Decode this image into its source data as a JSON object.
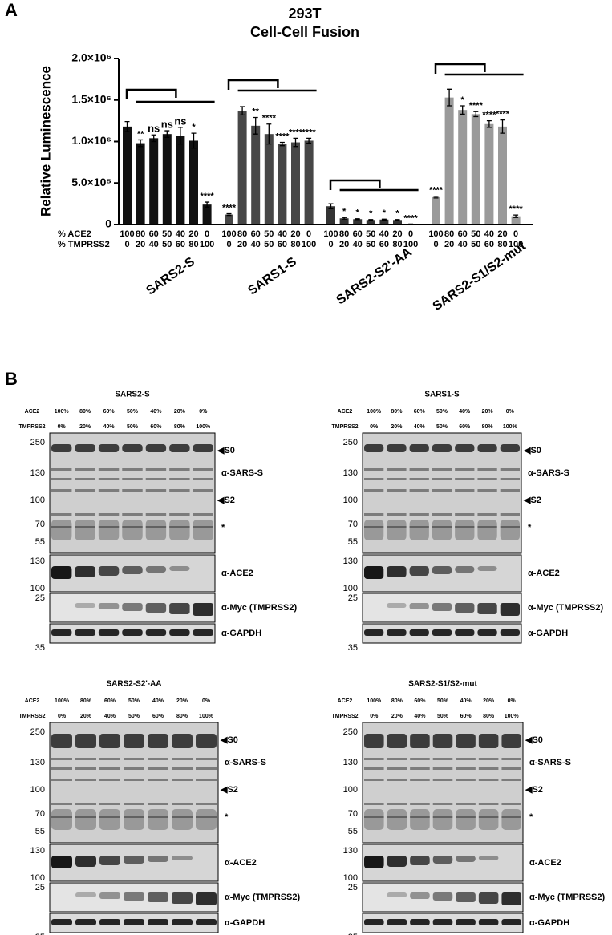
{
  "panel_labels": [
    "A",
    "B"
  ],
  "chart_data": {
    "type": "bar",
    "title": "293T",
    "subtitle": "Cell-Cell Fusion",
    "y_label": "Relative Luminescence",
    "ylim": [
      0,
      2000000
    ],
    "yticks": [
      0,
      {
        "value": 500000,
        "label": "5.0×10⁵"
      },
      {
        "value": 1000000,
        "label": "1.0×10⁶"
      },
      {
        "value": 1500000,
        "label": "1.5×10⁶"
      },
      {
        "value": 2000000,
        "label": "2.0×10⁶"
      }
    ],
    "row_labels": [
      "% ACE2",
      "% TMPRSS2"
    ],
    "ace2": [
      100,
      80,
      60,
      50,
      40,
      20,
      0
    ],
    "tmprss2": [
      0,
      20,
      40,
      50,
      60,
      80,
      100
    ],
    "series": [
      {
        "name": "SARS2-S",
        "color": "#111111",
        "values": [
          1180000,
          980000,
          1040000,
          1090000,
          1070000,
          1010000,
          240000
        ],
        "errors": [
          60000,
          40000,
          40000,
          40000,
          100000,
          90000,
          30000
        ],
        "significance": [
          null,
          "**",
          "ns",
          "ns",
          "ns",
          "*",
          "****"
        ]
      },
      {
        "name": "SARS1-S",
        "color": "#474747",
        "values": [
          120000,
          1370000,
          1190000,
          1090000,
          970000,
          990000,
          1010000
        ],
        "errors": [
          10000,
          50000,
          100000,
          120000,
          20000,
          50000,
          30000
        ],
        "significance": [
          "****",
          null,
          "**",
          "****",
          "****",
          "****",
          "****"
        ]
      },
      {
        "name": "SARS2-S2'-AA",
        "color": "#333333",
        "values": [
          220000,
          75000,
          65000,
          55000,
          60000,
          55000,
          5000
        ],
        "errors": [
          30000,
          10000,
          5000,
          5000,
          5000,
          5000,
          1000
        ],
        "significance": [
          null,
          "*",
          "*",
          "*",
          "*",
          "*",
          "****"
        ]
      },
      {
        "name": "SARS2-S1/S2-mut",
        "color": "#9a9a9a",
        "values": [
          330000,
          1530000,
          1380000,
          1330000,
          1210000,
          1180000,
          100000
        ],
        "errors": [
          10000,
          100000,
          50000,
          30000,
          40000,
          80000,
          15000
        ],
        "significance": [
          "****",
          null,
          "*",
          "****",
          "****",
          "****",
          "****"
        ]
      }
    ]
  },
  "blots": {
    "titles": [
      "SARS2-S",
      "SARS1-S",
      "SARS2-S2'-AA",
      "SARS2-S1/S2-mut"
    ],
    "row_labels": [
      "ACE2",
      "TMPRSS2"
    ],
    "ace2": [
      "100%",
      "80%",
      "60%",
      "50%",
      "40%",
      "20%",
      "0%"
    ],
    "tmprss2": [
      "0%",
      "20%",
      "40%",
      "50%",
      "60%",
      "80%",
      "100%"
    ],
    "markers": [
      "250",
      "130",
      "100",
      "70",
      "55",
      "130",
      "100",
      "25",
      "35"
    ],
    "annotations": [
      "◀S0",
      "α-SARS-S",
      "◀S2",
      "*",
      "α-ACE2",
      "α-Myc (TMPRSS2)",
      "α-GAPDH"
    ]
  }
}
